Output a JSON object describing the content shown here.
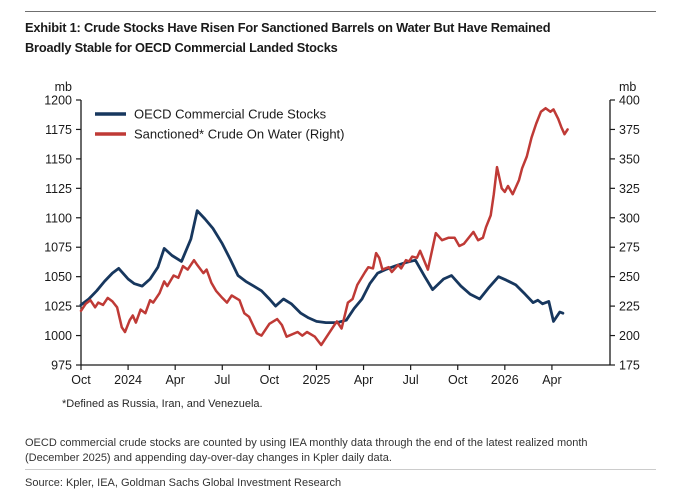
{
  "header": {
    "title_lines": [
      "Exhibit 1: Crude Stocks Have Risen For Sanctioned Barrels on Water But Have Remained",
      "Broadly Stable for OECD Commercial Landed Stocks"
    ]
  },
  "footnote": "*Defined as Russia, Iran, and Venezuela.",
  "notes": {
    "body_lines": [
      "OECD commercial crude stocks are counted by using IEA monthly data through the end of the latest realized month",
      "(December 2025) and appending day-over-day changes in Kpler daily data."
    ],
    "source": "Source: Kpler, IEA, Goldman Sachs Global Investment Research"
  },
  "chart_data": {
    "type": "line",
    "legend_position": "top-left-inside",
    "grid": false,
    "left_axis": {
      "unit": "mb",
      "min": 975,
      "max": 1200,
      "ticks": [
        1200,
        1175,
        1150,
        1125,
        1100,
        1075,
        1050,
        1025,
        1000,
        975
      ]
    },
    "right_axis": {
      "unit": "mb",
      "min": 175,
      "max": 400,
      "ticks": [
        400,
        375,
        350,
        325,
        300,
        275,
        250,
        225,
        200,
        175
      ]
    },
    "x_axis": {
      "note": "x units are months since Oct-2023",
      "max_m": 33.7,
      "ticks": [
        {
          "label": "Oct",
          "m": 0
        },
        {
          "label": "2024",
          "m": 3
        },
        {
          "label": "Apr",
          "m": 6
        },
        {
          "label": "Jul",
          "m": 9
        },
        {
          "label": "Oct",
          "m": 12
        },
        {
          "label": "2025",
          "m": 15
        },
        {
          "label": "Apr",
          "m": 18
        },
        {
          "label": "Jul",
          "m": 21
        },
        {
          "label": "Oct",
          "m": 24
        },
        {
          "label": "2026",
          "m": 27
        },
        {
          "label": "Apr",
          "m": 30
        }
      ]
    },
    "series": [
      {
        "name": "OECD Commercial Crude Stocks",
        "axis": "left",
        "color": "#17375E",
        "width": 2.8,
        "points": [
          [
            0,
            1026
          ],
          [
            0.5,
            1031
          ],
          [
            1,
            1038
          ],
          [
            1.5,
            1046
          ],
          [
            2,
            1053
          ],
          [
            2.4,
            1057
          ],
          [
            3,
            1048
          ],
          [
            3.4,
            1044
          ],
          [
            3.9,
            1042
          ],
          [
            4.4,
            1048
          ],
          [
            4.9,
            1058
          ],
          [
            5.3,
            1074
          ],
          [
            5.8,
            1068
          ],
          [
            6.4,
            1063
          ],
          [
            7.0,
            1082
          ],
          [
            7.4,
            1106
          ],
          [
            7.9,
            1099
          ],
          [
            8.4,
            1091
          ],
          [
            9.0,
            1078
          ],
          [
            9.5,
            1065
          ],
          [
            10.0,
            1051
          ],
          [
            10.5,
            1046
          ],
          [
            11.0,
            1042
          ],
          [
            11.5,
            1038
          ],
          [
            12.0,
            1031
          ],
          [
            12.4,
            1025
          ],
          [
            12.9,
            1031
          ],
          [
            13.4,
            1027
          ],
          [
            14.0,
            1019
          ],
          [
            14.5,
            1015
          ],
          [
            15.0,
            1012
          ],
          [
            15.6,
            1011
          ],
          [
            16.3,
            1011
          ],
          [
            16.9,
            1013
          ],
          [
            17.4,
            1023
          ],
          [
            17.9,
            1031
          ],
          [
            18.4,
            1044
          ],
          [
            18.9,
            1053
          ],
          [
            19.4,
            1056
          ],
          [
            20.0,
            1059
          ],
          [
            20.7,
            1062
          ],
          [
            21.3,
            1064
          ],
          [
            21.9,
            1050
          ],
          [
            22.4,
            1039
          ],
          [
            23.1,
            1048
          ],
          [
            23.6,
            1051
          ],
          [
            24.2,
            1042
          ],
          [
            24.8,
            1035
          ],
          [
            25.4,
            1031
          ],
          [
            26.0,
            1041
          ],
          [
            26.6,
            1050
          ],
          [
            27.1,
            1047
          ],
          [
            27.7,
            1043
          ],
          [
            28.3,
            1035
          ],
          [
            28.8,
            1028
          ],
          [
            29.1,
            1030
          ],
          [
            29.4,
            1027
          ],
          [
            29.8,
            1029
          ],
          [
            30.1,
            1012
          ],
          [
            30.5,
            1020
          ],
          [
            30.7,
            1019
          ]
        ]
      },
      {
        "name": "Sanctioned* Crude On Water (Right)",
        "axis": "right",
        "color": "#BF3A36",
        "width": 2.5,
        "points": [
          [
            0,
            221
          ],
          [
            0.3,
            227
          ],
          [
            0.6,
            230
          ],
          [
            0.9,
            224
          ],
          [
            1.1,
            228
          ],
          [
            1.4,
            226
          ],
          [
            1.7,
            232
          ],
          [
            2.0,
            229
          ],
          [
            2.3,
            224
          ],
          [
            2.6,
            207
          ],
          [
            2.8,
            203
          ],
          [
            3.1,
            213
          ],
          [
            3.3,
            217
          ],
          [
            3.5,
            211
          ],
          [
            3.8,
            222
          ],
          [
            4.1,
            219
          ],
          [
            4.4,
            230
          ],
          [
            4.6,
            228
          ],
          [
            5.0,
            236
          ],
          [
            5.3,
            246
          ],
          [
            5.5,
            242
          ],
          [
            5.9,
            251
          ],
          [
            6.2,
            249
          ],
          [
            6.5,
            259
          ],
          [
            6.8,
            256
          ],
          [
            7.2,
            264
          ],
          [
            7.4,
            260
          ],
          [
            7.8,
            253
          ],
          [
            8.0,
            256
          ],
          [
            8.3,
            245
          ],
          [
            8.6,
            238
          ],
          [
            9.0,
            232
          ],
          [
            9.3,
            228
          ],
          [
            9.6,
            234
          ],
          [
            10.1,
            230
          ],
          [
            10.4,
            219
          ],
          [
            10.7,
            216
          ],
          [
            11.2,
            202
          ],
          [
            11.5,
            200
          ],
          [
            12.0,
            210
          ],
          [
            12.5,
            214
          ],
          [
            12.8,
            209
          ],
          [
            13.1,
            199
          ],
          [
            13.8,
            203
          ],
          [
            14.1,
            200
          ],
          [
            14.4,
            203
          ],
          [
            14.9,
            199
          ],
          [
            15.3,
            192
          ],
          [
            15.5,
            196
          ],
          [
            16.1,
            208
          ],
          [
            16.3,
            212
          ],
          [
            16.6,
            206
          ],
          [
            17.0,
            228
          ],
          [
            17.3,
            231
          ],
          [
            17.6,
            243
          ],
          [
            18.1,
            254
          ],
          [
            18.3,
            258
          ],
          [
            18.6,
            257
          ],
          [
            18.8,
            270
          ],
          [
            19.0,
            266
          ],
          [
            19.2,
            256
          ],
          [
            19.6,
            258
          ],
          [
            19.8,
            254
          ],
          [
            20.2,
            260
          ],
          [
            20.4,
            257
          ],
          [
            20.7,
            264
          ],
          [
            20.9,
            263
          ],
          [
            21.1,
            267
          ],
          [
            21.4,
            266
          ],
          [
            21.6,
            272
          ],
          [
            22.1,
            256
          ],
          [
            22.6,
            287
          ],
          [
            23.0,
            281
          ],
          [
            23.4,
            283
          ],
          [
            23.8,
            283
          ],
          [
            24.1,
            276
          ],
          [
            24.4,
            278
          ],
          [
            25.0,
            288
          ],
          [
            25.3,
            281
          ],
          [
            25.6,
            283
          ],
          [
            25.8,
            292
          ],
          [
            26.1,
            302
          ],
          [
            26.3,
            320
          ],
          [
            26.5,
            343
          ],
          [
            26.8,
            325
          ],
          [
            27.0,
            322
          ],
          [
            27.2,
            327
          ],
          [
            27.5,
            320
          ],
          [
            27.9,
            332
          ],
          [
            28.1,
            342
          ],
          [
            28.4,
            352
          ],
          [
            28.7,
            368
          ],
          [
            29.0,
            380
          ],
          [
            29.3,
            390
          ],
          [
            29.6,
            393
          ],
          [
            29.9,
            390
          ],
          [
            30.1,
            392
          ],
          [
            30.4,
            384
          ],
          [
            30.6,
            377
          ],
          [
            30.8,
            371
          ],
          [
            31.0,
            375
          ]
        ]
      }
    ]
  }
}
